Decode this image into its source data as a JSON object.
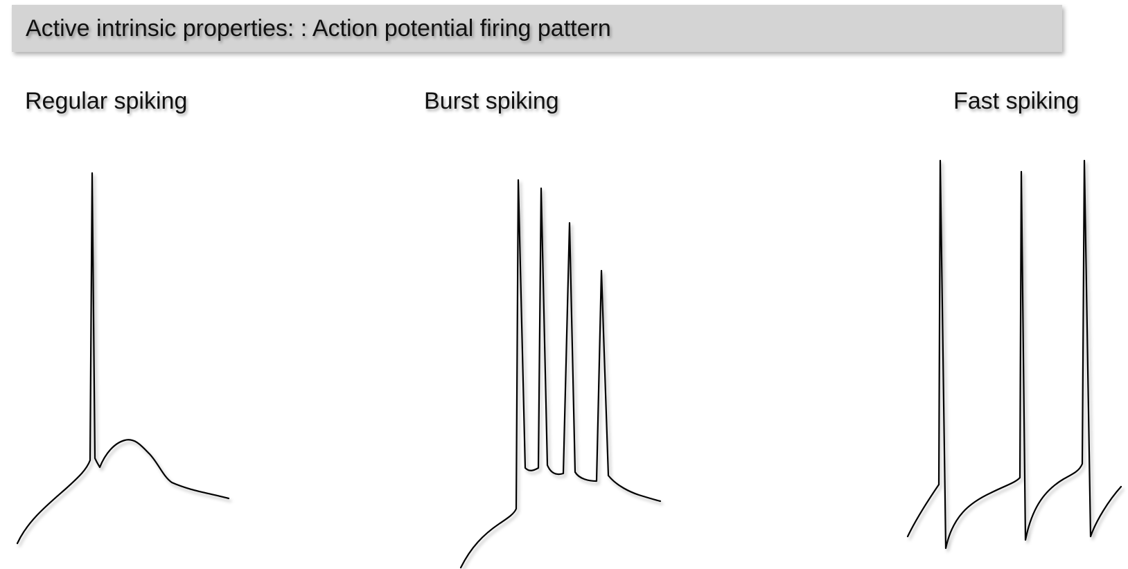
{
  "slide": {
    "title": "Active intrinsic properties: : Action potential firing pattern"
  },
  "panels": [
    {
      "label": "Regular spiking"
    },
    {
      "label": "Burst spiking"
    },
    {
      "label": "Fast spiking"
    }
  ]
}
